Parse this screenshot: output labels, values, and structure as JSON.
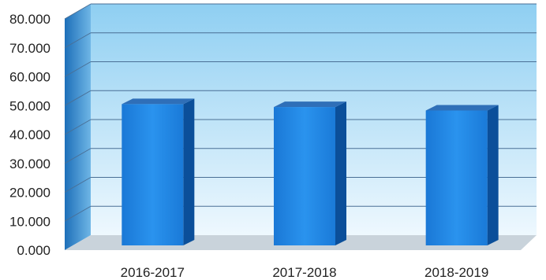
{
  "chart_data": {
    "type": "bar",
    "title": "",
    "xlabel": "",
    "ylabel": "",
    "categories": [
      "2016-2017",
      "2017-2018",
      "2018-2019"
    ],
    "values": [
      50.5,
      49.5,
      48.3
    ],
    "ylim": [
      0,
      80000
    ],
    "yticks": [
      0,
      10000,
      20000,
      30000,
      40000,
      50000,
      60000,
      70000,
      80000
    ],
    "ytick_labels": [
      "0.000",
      "10.000",
      "20.000",
      "30.000",
      "40.000",
      "50.000",
      "60.000",
      "70.000",
      "80.000"
    ],
    "grid": true,
    "style": "3d",
    "colors": {
      "bar_front": "#1f86e6",
      "bar_side": "#0b4f9a",
      "bar_top": "#2f6fb8",
      "wall_top": "#8fcff2",
      "wall_bottom": "#e8f6fd",
      "side_wall": "#3a8fd0",
      "floor": "#c9d3db",
      "gridline": "#4a6f95"
    }
  }
}
